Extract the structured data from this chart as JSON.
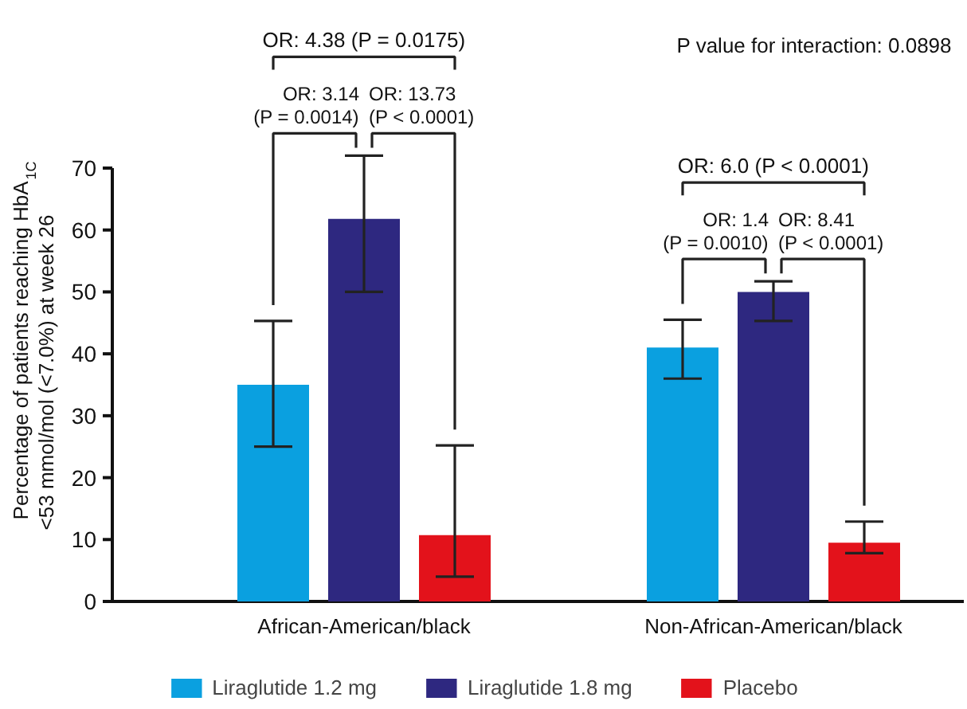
{
  "chart_data": {
    "type": "bar",
    "categories": [
      "African-American/black",
      "Non-African-American/black"
    ],
    "ylabel": "Percentage of patients reaching HbA$_{1C}$\n<53 mmol/mol (<7.0%) at week 26",
    "series": [
      {
        "name": "Liraglutide 1.2 mg",
        "color": "#0aa0e0",
        "values": [
          35,
          41
        ],
        "errors": [
          [
            25,
            45.3
          ],
          [
            36,
            45.5
          ]
        ]
      },
      {
        "name": "Liraglutide 1.8 mg",
        "color": "#2e2880",
        "values": [
          61.8,
          50
        ],
        "errors": [
          [
            50,
            72
          ],
          [
            45.3,
            51.7
          ]
        ]
      },
      {
        "name": "Placebo",
        "color": "#e3121b",
        "values": [
          10.7,
          9.5
        ],
        "errors": [
          [
            4,
            25.2
          ],
          [
            7.8,
            12.9
          ]
        ]
      }
    ],
    "ylim": [
      0,
      70
    ],
    "yticks": [
      0,
      10,
      20,
      30,
      40,
      50,
      60,
      70
    ],
    "grid": false,
    "legend": "bottom",
    "annotations": [
      "OR: 4.38 (P = 0.0175)",
      "OR: 3.14\n(P = 0.0014)",
      "OR: 13.73\n(P < 0.0001)",
      "OR: 6.0 (P < 0.0001)",
      "OR: 1.4\n(P = 0.0010)",
      "OR: 8.41\n(P < 0.0001)",
      "P value for interaction: 0.0898"
    ]
  }
}
